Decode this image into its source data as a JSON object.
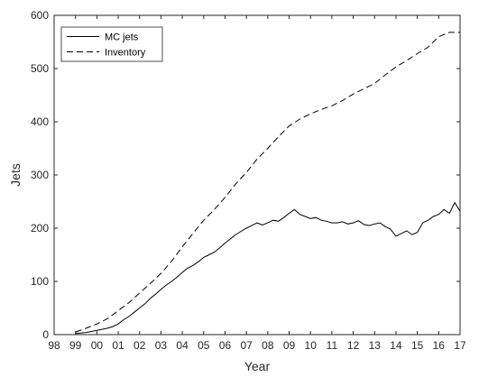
{
  "chart_data": {
    "type": "line",
    "title": "",
    "xlabel": "Year",
    "ylabel": "Jets",
    "xlim": [
      1998,
      2017
    ],
    "ylim": [
      0,
      600
    ],
    "x_ticks": [
      {
        "value": 1998,
        "label": "98"
      },
      {
        "value": 1999,
        "label": "99"
      },
      {
        "value": 2000,
        "label": "00"
      },
      {
        "value": 2001,
        "label": "01"
      },
      {
        "value": 2002,
        "label": "02"
      },
      {
        "value": 2003,
        "label": "03"
      },
      {
        "value": 2004,
        "label": "04"
      },
      {
        "value": 2005,
        "label": "05"
      },
      {
        "value": 2006,
        "label": "06"
      },
      {
        "value": 2007,
        "label": "07"
      },
      {
        "value": 2008,
        "label": "08"
      },
      {
        "value": 2009,
        "label": "09"
      },
      {
        "value": 2010,
        "label": "10"
      },
      {
        "value": 2011,
        "label": "11"
      },
      {
        "value": 2012,
        "label": "12"
      },
      {
        "value": 2013,
        "label": "13"
      },
      {
        "value": 2014,
        "label": "14"
      },
      {
        "value": 2015,
        "label": "15"
      },
      {
        "value": 2016,
        "label": "16"
      },
      {
        "value": 2017,
        "label": "17"
      }
    ],
    "y_ticks": [
      0,
      100,
      200,
      300,
      400,
      500,
      600
    ],
    "grid": false,
    "legend_position": "top-left",
    "series": [
      {
        "name": "MC jets",
        "style": "solid",
        "color": "#000000",
        "x": [
          1999.0,
          1999.25,
          1999.5,
          1999.75,
          2000.0,
          2000.25,
          2000.5,
          2000.75,
          2001.0,
          2001.25,
          2001.5,
          2001.75,
          2002.0,
          2002.25,
          2002.5,
          2002.75,
          2003.0,
          2003.25,
          2003.5,
          2003.75,
          2004.0,
          2004.25,
          2004.5,
          2004.75,
          2005.0,
          2005.25,
          2005.5,
          2005.75,
          2006.0,
          2006.25,
          2006.5,
          2006.75,
          2007.0,
          2007.25,
          2007.5,
          2007.75,
          2008.0,
          2008.25,
          2008.5,
          2008.75,
          2009.0,
          2009.25,
          2009.5,
          2009.75,
          2010.0,
          2010.25,
          2010.5,
          2010.75,
          2011.0,
          2011.25,
          2011.5,
          2011.75,
          2012.0,
          2012.25,
          2012.5,
          2012.75,
          2013.0,
          2013.25,
          2013.5,
          2013.75,
          2014.0,
          2014.25,
          2014.5,
          2014.75,
          2015.0,
          2015.25,
          2015.5,
          2015.75,
          2016.0,
          2016.25,
          2016.5,
          2016.75,
          2017.0
        ],
        "y": [
          2,
          3,
          4,
          6,
          8,
          10,
          12,
          15,
          20,
          28,
          34,
          42,
          50,
          58,
          68,
          76,
          85,
          93,
          100,
          108,
          117,
          125,
          130,
          137,
          145,
          150,
          155,
          163,
          172,
          180,
          188,
          194,
          200,
          205,
          210,
          206,
          210,
          215,
          213,
          220,
          228,
          235,
          226,
          222,
          218,
          220,
          215,
          213,
          210,
          210,
          212,
          208,
          210,
          214,
          207,
          205,
          208,
          210,
          203,
          198,
          185,
          190,
          195,
          188,
          192,
          210,
          215,
          222,
          226,
          235,
          228,
          248,
          232
        ]
      },
      {
        "name": "Inventory",
        "style": "dashed",
        "color": "#000000",
        "x": [
          1999.0,
          1999.5,
          2000.0,
          2000.5,
          2001.0,
          2001.5,
          2002.0,
          2002.5,
          2003.0,
          2003.5,
          2004.0,
          2004.5,
          2005.0,
          2005.5,
          2006.0,
          2006.5,
          2007.0,
          2007.5,
          2008.0,
          2008.5,
          2009.0,
          2009.5,
          2010.0,
          2010.5,
          2011.0,
          2011.5,
          2012.0,
          2012.5,
          2013.0,
          2013.5,
          2014.0,
          2014.5,
          2015.0,
          2015.5,
          2016.0,
          2016.5,
          2017.0
        ],
        "y": [
          5,
          12,
          20,
          30,
          45,
          60,
          78,
          96,
          115,
          138,
          165,
          190,
          215,
          235,
          258,
          283,
          305,
          330,
          350,
          372,
          392,
          405,
          415,
          423,
          430,
          440,
          452,
          462,
          472,
          488,
          503,
          515,
          528,
          540,
          560,
          568,
          568
        ]
      }
    ]
  }
}
